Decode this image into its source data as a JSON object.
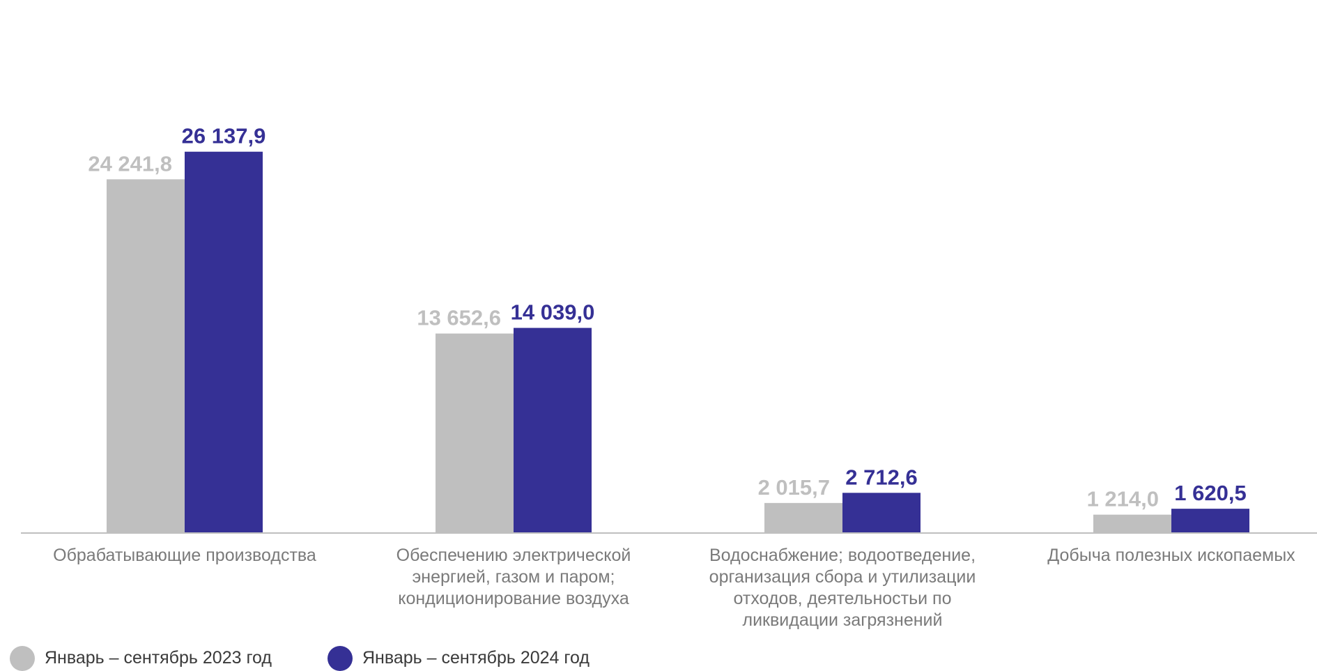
{
  "colors": {
    "series_2023": "#bfbfbf",
    "series_2024": "#353095",
    "axis": "#bfbfbf",
    "category_text": "#7a7a7a"
  },
  "chart_data": {
    "type": "bar",
    "title": "",
    "xlabel": "",
    "ylabel": "",
    "ylim": [
      0,
      27500
    ],
    "grid": false,
    "legend_position": "bottom-left",
    "categories": [
      [
        "Обрабатывающие производства"
      ],
      [
        "Обеспечению электрической",
        "энергией, газом и паром;",
        "кондиционирование воздуха"
      ],
      [
        "Водоснабжение; водоотведение,",
        "организация сбора и утилизации",
        "отходов, деятельностьи по",
        "ликвидации загрязнений"
      ],
      [
        "Добыча полезных ископаемых"
      ]
    ],
    "series": [
      {
        "name": "Январь – сентябрь 2023 год",
        "values": [
          24241.8,
          13652.6,
          2015.7,
          1214.0
        ],
        "labels": [
          "24 241,8",
          "13 652,6",
          "2 015,7",
          "1 214,0"
        ]
      },
      {
        "name": "Январь – сентябрь 2024 год",
        "values": [
          26137.9,
          14039.0,
          2712.6,
          1620.5
        ],
        "labels": [
          "26 137,9",
          "14 039,0",
          "2 712,6",
          "1 620,5"
        ]
      }
    ]
  }
}
